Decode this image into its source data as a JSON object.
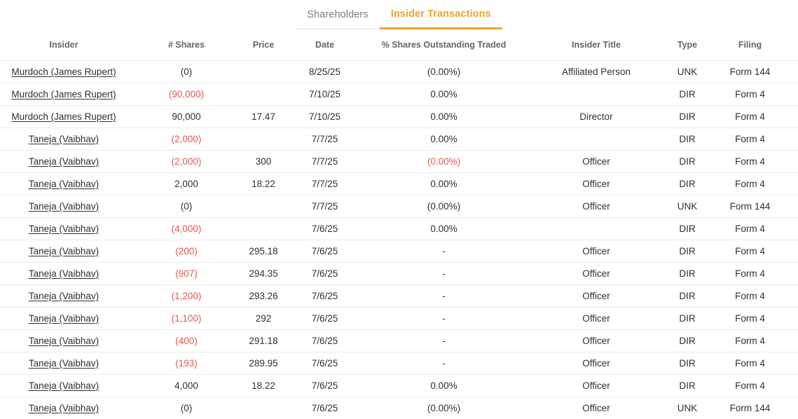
{
  "tabs": [
    {
      "label": "Shareholders",
      "active": false
    },
    {
      "label": "Insider Transactions",
      "active": true
    }
  ],
  "colors": {
    "accent_orange": "#f0a32c",
    "negative_red": "#e8564d",
    "inactive_tab_gray": "#7d7d7d",
    "row_border": "#ebebeb"
  },
  "table": {
    "columns": [
      "Insider",
      "# Shares",
      "Price",
      "Date",
      "% Shares Outstanding Traded",
      "Insider Title",
      "Type",
      "Filing"
    ],
    "rows": [
      {
        "insider": "Murdoch (James Rupert)",
        "shares": "(0)",
        "shares_neg": false,
        "price": "",
        "date": "8/25/25",
        "pct": "(0.00%)",
        "pct_neg": false,
        "title": "Affiliated Person",
        "type": "UNK",
        "filing": "Form 144"
      },
      {
        "insider": "Murdoch (James Rupert)",
        "shares": "(90,000)",
        "shares_neg": true,
        "price": "",
        "date": "7/10/25",
        "pct": "0.00%",
        "pct_neg": false,
        "title": "",
        "type": "DIR",
        "filing": "Form 4"
      },
      {
        "insider": "Murdoch (James Rupert)",
        "shares": "90,000",
        "shares_neg": false,
        "price": "17.47",
        "date": "7/10/25",
        "pct": "0.00%",
        "pct_neg": false,
        "title": "Director",
        "type": "DIR",
        "filing": "Form 4"
      },
      {
        "insider": "Taneja (Vaibhav)",
        "shares": "(2,000)",
        "shares_neg": true,
        "price": "",
        "date": "7/7/25",
        "pct": "0.00%",
        "pct_neg": false,
        "title": "",
        "type": "DIR",
        "filing": "Form 4"
      },
      {
        "insider": "Taneja (Vaibhav)",
        "shares": "(2,000)",
        "shares_neg": true,
        "price": "300",
        "date": "7/7/25",
        "pct": "(0.00%)",
        "pct_neg": true,
        "title": "Officer",
        "type": "DIR",
        "filing": "Form 4"
      },
      {
        "insider": "Taneja (Vaibhav)",
        "shares": "2,000",
        "shares_neg": false,
        "price": "18.22",
        "date": "7/7/25",
        "pct": "0.00%",
        "pct_neg": false,
        "title": "Officer",
        "type": "DIR",
        "filing": "Form 4"
      },
      {
        "insider": "Taneja (Vaibhav)",
        "shares": "(0)",
        "shares_neg": false,
        "price": "",
        "date": "7/7/25",
        "pct": "(0.00%)",
        "pct_neg": false,
        "title": "Officer",
        "type": "UNK",
        "filing": "Form 144"
      },
      {
        "insider": "Taneja (Vaibhav)",
        "shares": "(4,000)",
        "shares_neg": true,
        "price": "",
        "date": "7/6/25",
        "pct": "0.00%",
        "pct_neg": false,
        "title": "",
        "type": "DIR",
        "filing": "Form 4"
      },
      {
        "insider": "Taneja (Vaibhav)",
        "shares": "(200)",
        "shares_neg": true,
        "price": "295.18",
        "date": "7/6/25",
        "pct": "-",
        "pct_neg": false,
        "title": "Officer",
        "type": "DIR",
        "filing": "Form 4"
      },
      {
        "insider": "Taneja (Vaibhav)",
        "shares": "(907)",
        "shares_neg": true,
        "price": "294.35",
        "date": "7/6/25",
        "pct": "-",
        "pct_neg": false,
        "title": "Officer",
        "type": "DIR",
        "filing": "Form 4"
      },
      {
        "insider": "Taneja (Vaibhav)",
        "shares": "(1,200)",
        "shares_neg": true,
        "price": "293.26",
        "date": "7/6/25",
        "pct": "-",
        "pct_neg": false,
        "title": "Officer",
        "type": "DIR",
        "filing": "Form 4"
      },
      {
        "insider": "Taneja (Vaibhav)",
        "shares": "(1,100)",
        "shares_neg": true,
        "price": "292",
        "date": "7/6/25",
        "pct": "-",
        "pct_neg": false,
        "title": "Officer",
        "type": "DIR",
        "filing": "Form 4"
      },
      {
        "insider": "Taneja (Vaibhav)",
        "shares": "(400)",
        "shares_neg": true,
        "price": "291.18",
        "date": "7/6/25",
        "pct": "-",
        "pct_neg": false,
        "title": "Officer",
        "type": "DIR",
        "filing": "Form 4"
      },
      {
        "insider": "Taneja (Vaibhav)",
        "shares": "(193)",
        "shares_neg": true,
        "price": "289.95",
        "date": "7/6/25",
        "pct": "-",
        "pct_neg": false,
        "title": "Officer",
        "type": "DIR",
        "filing": "Form 4"
      },
      {
        "insider": "Taneja (Vaibhav)",
        "shares": "4,000",
        "shares_neg": false,
        "price": "18.22",
        "date": "7/6/25",
        "pct": "0.00%",
        "pct_neg": false,
        "title": "Officer",
        "type": "DIR",
        "filing": "Form 4"
      },
      {
        "insider": "Taneja (Vaibhav)",
        "shares": "(0)",
        "shares_neg": false,
        "price": "",
        "date": "7/6/25",
        "pct": "(0.00%)",
        "pct_neg": false,
        "title": "Officer",
        "type": "UNK",
        "filing": "Form 144"
      }
    ]
  }
}
